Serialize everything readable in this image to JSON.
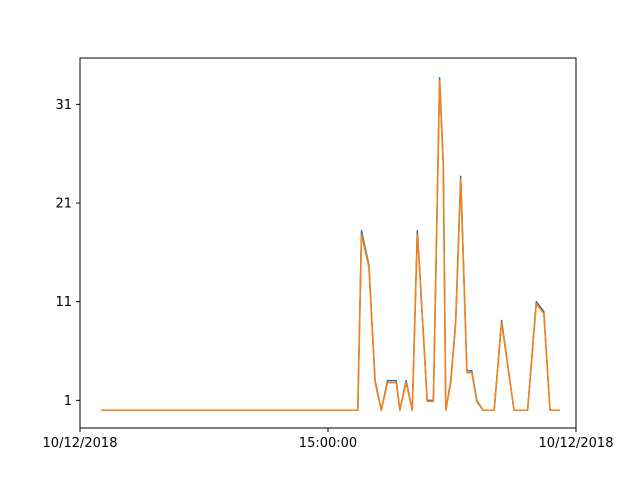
{
  "chart_data": {
    "type": "line",
    "x_start": "10/12/2018",
    "x_end": "10/12/2018",
    "x_ticks": [
      {
        "label": "10/12/2018",
        "x": 0
      },
      {
        "label": "15:00:00",
        "x": 2.0
      },
      {
        "label": "10/12/2018",
        "x": 4.0
      }
    ],
    "y_ticks": [
      1,
      11,
      21,
      31
    ],
    "xlim": [
      0,
      4.0
    ],
    "ylim": [
      -1.8,
      35.7
    ],
    "grid": false,
    "series": [
      {
        "color": "#1f77b4",
        "x": [
          0.17,
          1.0,
          2.0,
          2.24,
          2.27,
          2.33,
          2.38,
          2.43,
          2.48,
          2.55,
          2.58,
          2.63,
          2.68,
          2.72,
          2.74,
          2.8,
          2.85,
          2.9,
          2.93,
          2.95,
          2.99,
          3.03,
          3.07,
          3.12,
          3.16,
          3.2,
          3.25,
          3.28,
          3.34,
          3.4,
          3.5,
          3.55,
          3.61,
          3.68,
          3.74,
          3.79,
          3.87
        ],
        "y": [
          0,
          0,
          0,
          0,
          18.2,
          14.7,
          3.0,
          0,
          3.0,
          3.0,
          0,
          3.0,
          0,
          18.2,
          14.0,
          1.0,
          1.0,
          33.7,
          25.0,
          0,
          3.0,
          9.0,
          23.7,
          4.0,
          4.0,
          1.0,
          0,
          0,
          0,
          9.1,
          0,
          0,
          0,
          11.0,
          10.0,
          0,
          0
        ]
      },
      {
        "color": "#ff7f0e",
        "x": [
          0.17,
          1.0,
          2.0,
          2.24,
          2.27,
          2.33,
          2.38,
          2.43,
          2.48,
          2.55,
          2.58,
          2.63,
          2.68,
          2.72,
          2.74,
          2.8,
          2.85,
          2.9,
          2.93,
          2.95,
          2.99,
          3.03,
          3.07,
          3.12,
          3.16,
          3.2,
          3.25,
          3.28,
          3.34,
          3.4,
          3.5,
          3.55,
          3.61,
          3.68,
          3.74,
          3.79,
          3.87
        ],
        "y": [
          0,
          0,
          0,
          0,
          17.8,
          14.5,
          2.8,
          0,
          2.8,
          2.8,
          0,
          2.8,
          0,
          17.8,
          13.8,
          0.9,
          0.9,
          33.4,
          24.7,
          0,
          2.8,
          8.8,
          23.4,
          3.8,
          3.8,
          0.9,
          0,
          0,
          0,
          8.9,
          0,
          0,
          0,
          10.8,
          9.8,
          0,
          0
        ]
      }
    ]
  }
}
